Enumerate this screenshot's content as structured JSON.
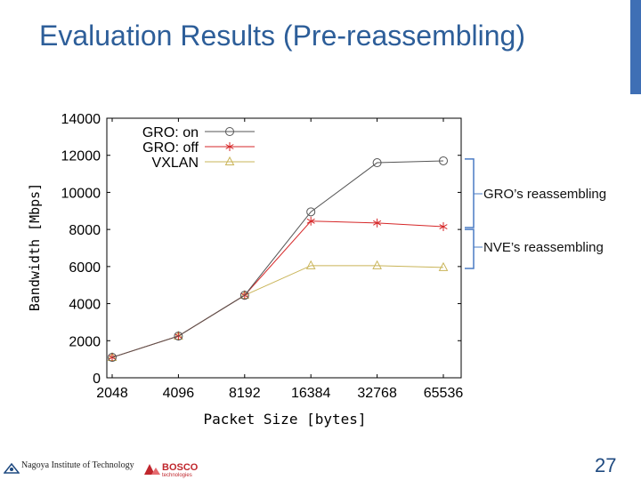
{
  "slide": {
    "title": "Evaluation Results (Pre-reassembling)",
    "page_number": "27",
    "footer_institution": "Nagoya Institute of Technology",
    "footer_brand": "BOSCO",
    "footer_brand_sub": "technologies"
  },
  "annotations": [
    {
      "label": "GRO’s reassembling"
    },
    {
      "label": "NVE’s reassembling"
    }
  ],
  "colors": {
    "title": "#2d5e99",
    "accent_bar": "#3f6fb5",
    "series_gro_on": "#555555",
    "series_gro_off": "#d62728",
    "series_vxlan": "#c9b458",
    "bracket": "#4a7bc4"
  },
  "chart_data": {
    "type": "line",
    "categories": [
      "2048",
      "4096",
      "8192",
      "16384",
      "32768",
      "65536"
    ],
    "xlabel": "Packet Size [bytes]",
    "ylabel": "Bandwidth [Mbps]",
    "ylim": [
      0,
      14000
    ],
    "yticks": [
      "0",
      "2000",
      "4000",
      "6000",
      "8000",
      "10000",
      "12000",
      "14000"
    ],
    "grid": false,
    "legend_position": "top-left",
    "series": [
      {
        "name": "GRO: on",
        "marker": "circle",
        "values": [
          1100,
          2250,
          4450,
          8950,
          11600,
          11700
        ]
      },
      {
        "name": "GRO: off",
        "marker": "asterisk",
        "values": [
          1100,
          2250,
          4450,
          8450,
          8350,
          8150
        ]
      },
      {
        "name": "VXLAN",
        "marker": "triangle",
        "values": [
          1100,
          2250,
          4450,
          6050,
          6050,
          5950
        ]
      }
    ]
  }
}
